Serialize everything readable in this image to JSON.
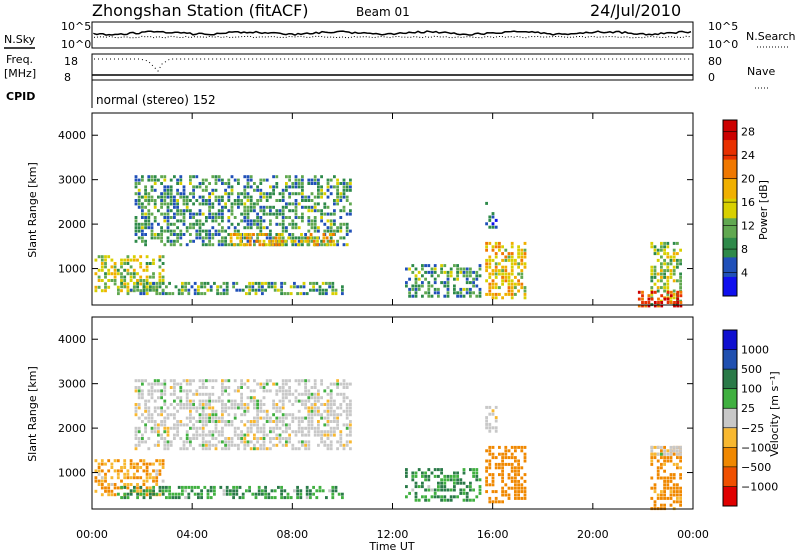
{
  "header": {
    "title": "Zhongshan Station (fitACF)",
    "beam": "Beam 01",
    "date": "24/Jul/2010"
  },
  "status_panels": {
    "nsky_label": "N.Sky",
    "nsearch_label": "N.Search",
    "freq_label": "Freq.",
    "freq_unit": "[MHz]",
    "nave_label": "Nave",
    "cpid_label": "CPID",
    "cpid_text": "normal (stereo) 152",
    "noise_left_ticks": [
      "10^5",
      "10^0"
    ],
    "noise_right_ticks": [
      "10^5",
      "10^0"
    ],
    "freq_ticks": [
      "18",
      "8"
    ],
    "nave_ticks": [
      "80",
      "0"
    ]
  },
  "colors": {
    "power": [
      "#1010ee",
      "#2050b8",
      "#2e8a4a",
      "#60a850",
      "#d8d000",
      "#f0b000",
      "#f07800",
      "#e83000",
      "#cc0000"
    ],
    "velocity": [
      "#e00000",
      "#f05000",
      "#f08800",
      "#f8b830",
      "#c8c8c8",
      "#40b040",
      "#2a7a48",
      "#2050b0",
      "#1010d0"
    ]
  },
  "chart_data": [
    {
      "type": "heatmap",
      "name": "power",
      "ylabel": "Slant Range [km]",
      "xlabel": "Time UT",
      "xlim": [
        0,
        24
      ],
      "ylim": [
        180,
        4500
      ],
      "x_ticks": [
        "00:00",
        "04:00",
        "08:00",
        "12:00",
        "16:00",
        "20:00",
        "00:00"
      ],
      "y_ticks": [
        1000,
        2000,
        3000,
        4000
      ],
      "colorbar_label": "Power [dB]",
      "colorbar_ticks": [
        "4",
        "8",
        "12",
        "16",
        "20",
        "24",
        "28"
      ],
      "colorbar_range": [
        0,
        30
      ],
      "regions": [
        {
          "t": [
            0.1,
            2.8
          ],
          "r": [
            500,
            1300
          ],
          "value": 14
        },
        {
          "t": [
            1.7,
            10.3
          ],
          "r": [
            1500,
            3100
          ],
          "value": 9
        },
        {
          "t": [
            5.5,
            9.6
          ],
          "r": [
            1500,
            1800
          ],
          "value": 18
        },
        {
          "t": [
            1.0,
            10.0
          ],
          "r": [
            400,
            700
          ],
          "value": 10
        },
        {
          "t": [
            12.5,
            15.5
          ],
          "r": [
            400,
            1100
          ],
          "value": 9
        },
        {
          "t": [
            15.7,
            17.3
          ],
          "r": [
            300,
            1600
          ],
          "value": 17
        },
        {
          "t": [
            15.7,
            16.1
          ],
          "r": [
            1900,
            2500
          ],
          "value": 6
        },
        {
          "t": [
            22.3,
            23.5
          ],
          "r": [
            200,
            1600
          ],
          "value": 13
        },
        {
          "t": [
            21.8,
            23.5
          ],
          "r": [
            180,
            500
          ],
          "value": 26
        }
      ]
    },
    {
      "type": "heatmap",
      "name": "velocity",
      "ylabel": "Slant Range [km]",
      "xlabel": "Time UT",
      "xlim": [
        0,
        24
      ],
      "ylim": [
        180,
        4500
      ],
      "x_ticks": [
        "00:00",
        "04:00",
        "08:00",
        "12:00",
        "16:00",
        "20:00",
        "00:00"
      ],
      "y_ticks": [
        1000,
        2000,
        3000,
        4000
      ],
      "colorbar_label": "Velocity [m s⁻¹]",
      "colorbar_ticks": [
        "1000",
        "500",
        "100",
        "25",
        "−25",
        "−100",
        "−500",
        "−1000"
      ],
      "regions": [
        {
          "t": [
            0.1,
            2.8
          ],
          "r": [
            500,
            1300
          ],
          "value": -100
        },
        {
          "t": [
            1.7,
            10.3
          ],
          "r": [
            1500,
            3100
          ],
          "value": 0
        },
        {
          "t": [
            1.0,
            10.0
          ],
          "r": [
            400,
            700
          ],
          "value": 100
        },
        {
          "t": [
            12.5,
            15.5
          ],
          "r": [
            400,
            1100
          ],
          "value": 100
        },
        {
          "t": [
            15.7,
            17.3
          ],
          "r": [
            300,
            1600
          ],
          "value": -300
        },
        {
          "t": [
            15.7,
            16.1
          ],
          "r": [
            1900,
            2500
          ],
          "value": 0
        },
        {
          "t": [
            22.3,
            23.5
          ],
          "r": [
            200,
            1600
          ],
          "value": -200
        },
        {
          "t": [
            22.3,
            23.5
          ],
          "r": [
            1400,
            1600
          ],
          "value": 0
        }
      ]
    }
  ]
}
